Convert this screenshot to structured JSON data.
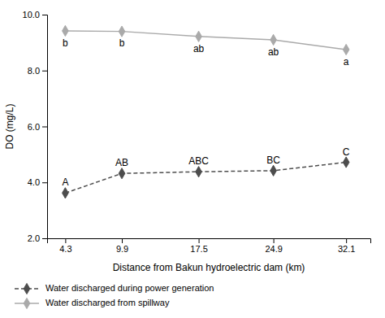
{
  "chart_data": {
    "type": "line",
    "x": [
      4.3,
      9.9,
      17.5,
      24.9,
      32.1
    ],
    "series": [
      {
        "name": "Water discharged during power generation",
        "color": "#4d4d4d",
        "line_style": "dashed",
        "marker": "diamond",
        "values": [
          3.62,
          4.32,
          4.38,
          4.42,
          4.72
        ],
        "point_labels": [
          "A",
          "AB",
          "ABC",
          "BC",
          "C"
        ]
      },
      {
        "name": "Water discharged from spillway",
        "color": "#aaaaaa",
        "line_style": "solid",
        "marker": "diamond",
        "values": [
          9.42,
          9.4,
          9.22,
          9.1,
          8.75
        ],
        "point_labels": [
          "b",
          "b",
          "ab",
          "ab",
          "a"
        ]
      }
    ],
    "x_label": "Distance from Bakun hydroelectric dam (km)",
    "y_label": "DO (mg/L)",
    "xlim": [
      2.5,
      34.5
    ],
    "xticks": [
      4.3,
      9.9,
      17.5,
      24.9,
      32.1
    ],
    "ylim": [
      2.0,
      10.0
    ],
    "yticks": [
      {
        "value": 2.0,
        "label": "2.0"
      },
      {
        "value": 4.0,
        "label": "4.0"
      },
      {
        "value": 6.0,
        "label": "6.0"
      },
      {
        "value": 8.0,
        "label": "8.0"
      },
      {
        "value": 10.0,
        "label": "10.0"
      }
    ],
    "grid": false,
    "legend": "bottom"
  }
}
